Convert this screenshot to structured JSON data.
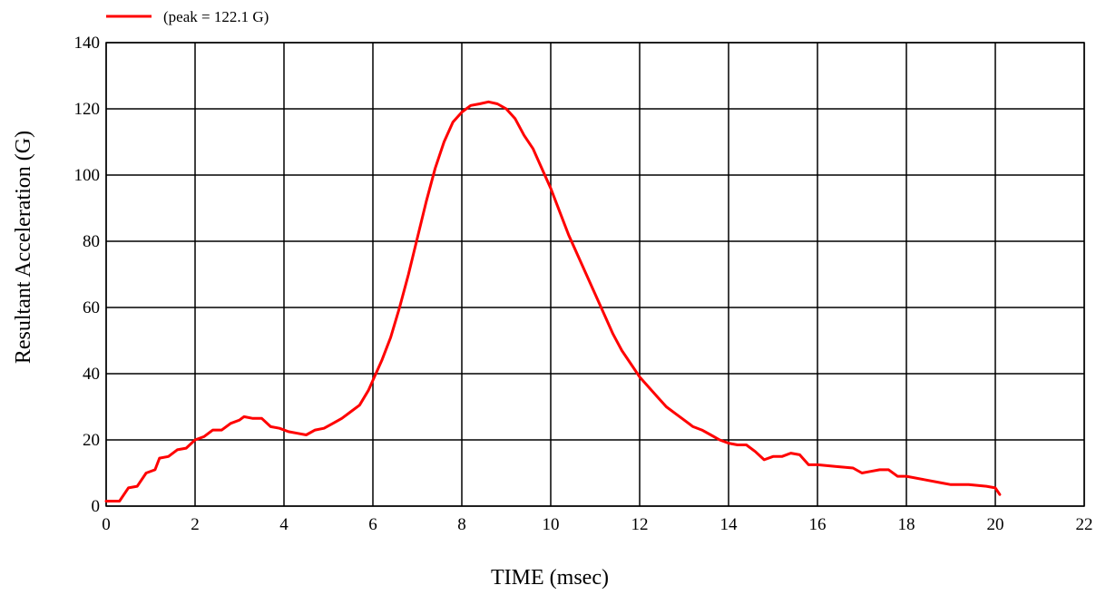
{
  "chart_data": {
    "type": "line",
    "xlabel": "TIME (msec)",
    "ylabel": "Resultant Acceleration (G)",
    "xlim": [
      0,
      22
    ],
    "ylim": [
      0,
      140
    ],
    "x_ticks": [
      0,
      2,
      4,
      6,
      8,
      10,
      12,
      14,
      16,
      18,
      20,
      22
    ],
    "y_ticks": [
      0,
      20,
      40,
      60,
      80,
      100,
      120,
      140
    ],
    "grid": true,
    "legend_position": "top-left",
    "series": [
      {
        "name": "(peak = 122.1 G)",
        "color": "#ff0000",
        "x": [
          0,
          0.3,
          0.5,
          0.7,
          0.9,
          1.1,
          1.2,
          1.4,
          1.6,
          1.8,
          2.0,
          2.2,
          2.4,
          2.6,
          2.8,
          3.0,
          3.1,
          3.3,
          3.5,
          3.7,
          3.9,
          4.1,
          4.3,
          4.5,
          4.7,
          4.9,
          5.1,
          5.3,
          5.5,
          5.7,
          5.9,
          6.0,
          6.2,
          6.4,
          6.6,
          6.8,
          7.0,
          7.2,
          7.4,
          7.6,
          7.8,
          8.0,
          8.2,
          8.4,
          8.6,
          8.8,
          9.0,
          9.2,
          9.4,
          9.6,
          9.8,
          10.0,
          10.2,
          10.4,
          10.6,
          10.8,
          11.0,
          11.2,
          11.4,
          11.6,
          11.8,
          12.0,
          12.2,
          12.4,
          12.6,
          12.8,
          13.0,
          13.2,
          13.4,
          13.6,
          13.8,
          14.0,
          14.2,
          14.4,
          14.6,
          14.8,
          15.0,
          15.1,
          15.2,
          15.4,
          15.6,
          15.8,
          15.9,
          16.0,
          16.4,
          16.8,
          17.0,
          17.2,
          17.4,
          17.6,
          17.8,
          18.0,
          18.4,
          18.8,
          19.0,
          19.4,
          19.8,
          20.0,
          20.1
        ],
        "y": [
          1.5,
          1.5,
          5.5,
          6,
          10,
          11,
          14.5,
          15,
          17,
          17.5,
          20,
          21,
          23,
          23,
          25,
          26,
          27,
          26.5,
          26.5,
          24,
          23.5,
          22.5,
          22,
          21.5,
          23,
          23.5,
          25,
          26.5,
          28.5,
          30.5,
          35,
          38,
          44,
          51,
          60,
          70,
          81,
          92,
          102,
          110,
          116,
          119,
          121,
          121.5,
          122.1,
          121.5,
          120,
          117,
          112,
          108,
          102,
          96,
          89,
          82,
          76,
          70,
          64,
          58,
          52,
          47,
          43,
          39,
          36,
          33,
          30,
          28,
          26,
          24,
          23,
          21.5,
          20,
          19,
          18.5,
          18.5,
          16.5,
          14,
          15,
          15,
          15,
          16,
          15.5,
          12.5,
          12.5,
          12.5,
          12,
          11.5,
          10,
          10.5,
          11,
          11,
          9,
          9,
          8,
          7,
          6.5,
          6.5,
          6,
          5.5,
          3.5
        ]
      }
    ]
  }
}
